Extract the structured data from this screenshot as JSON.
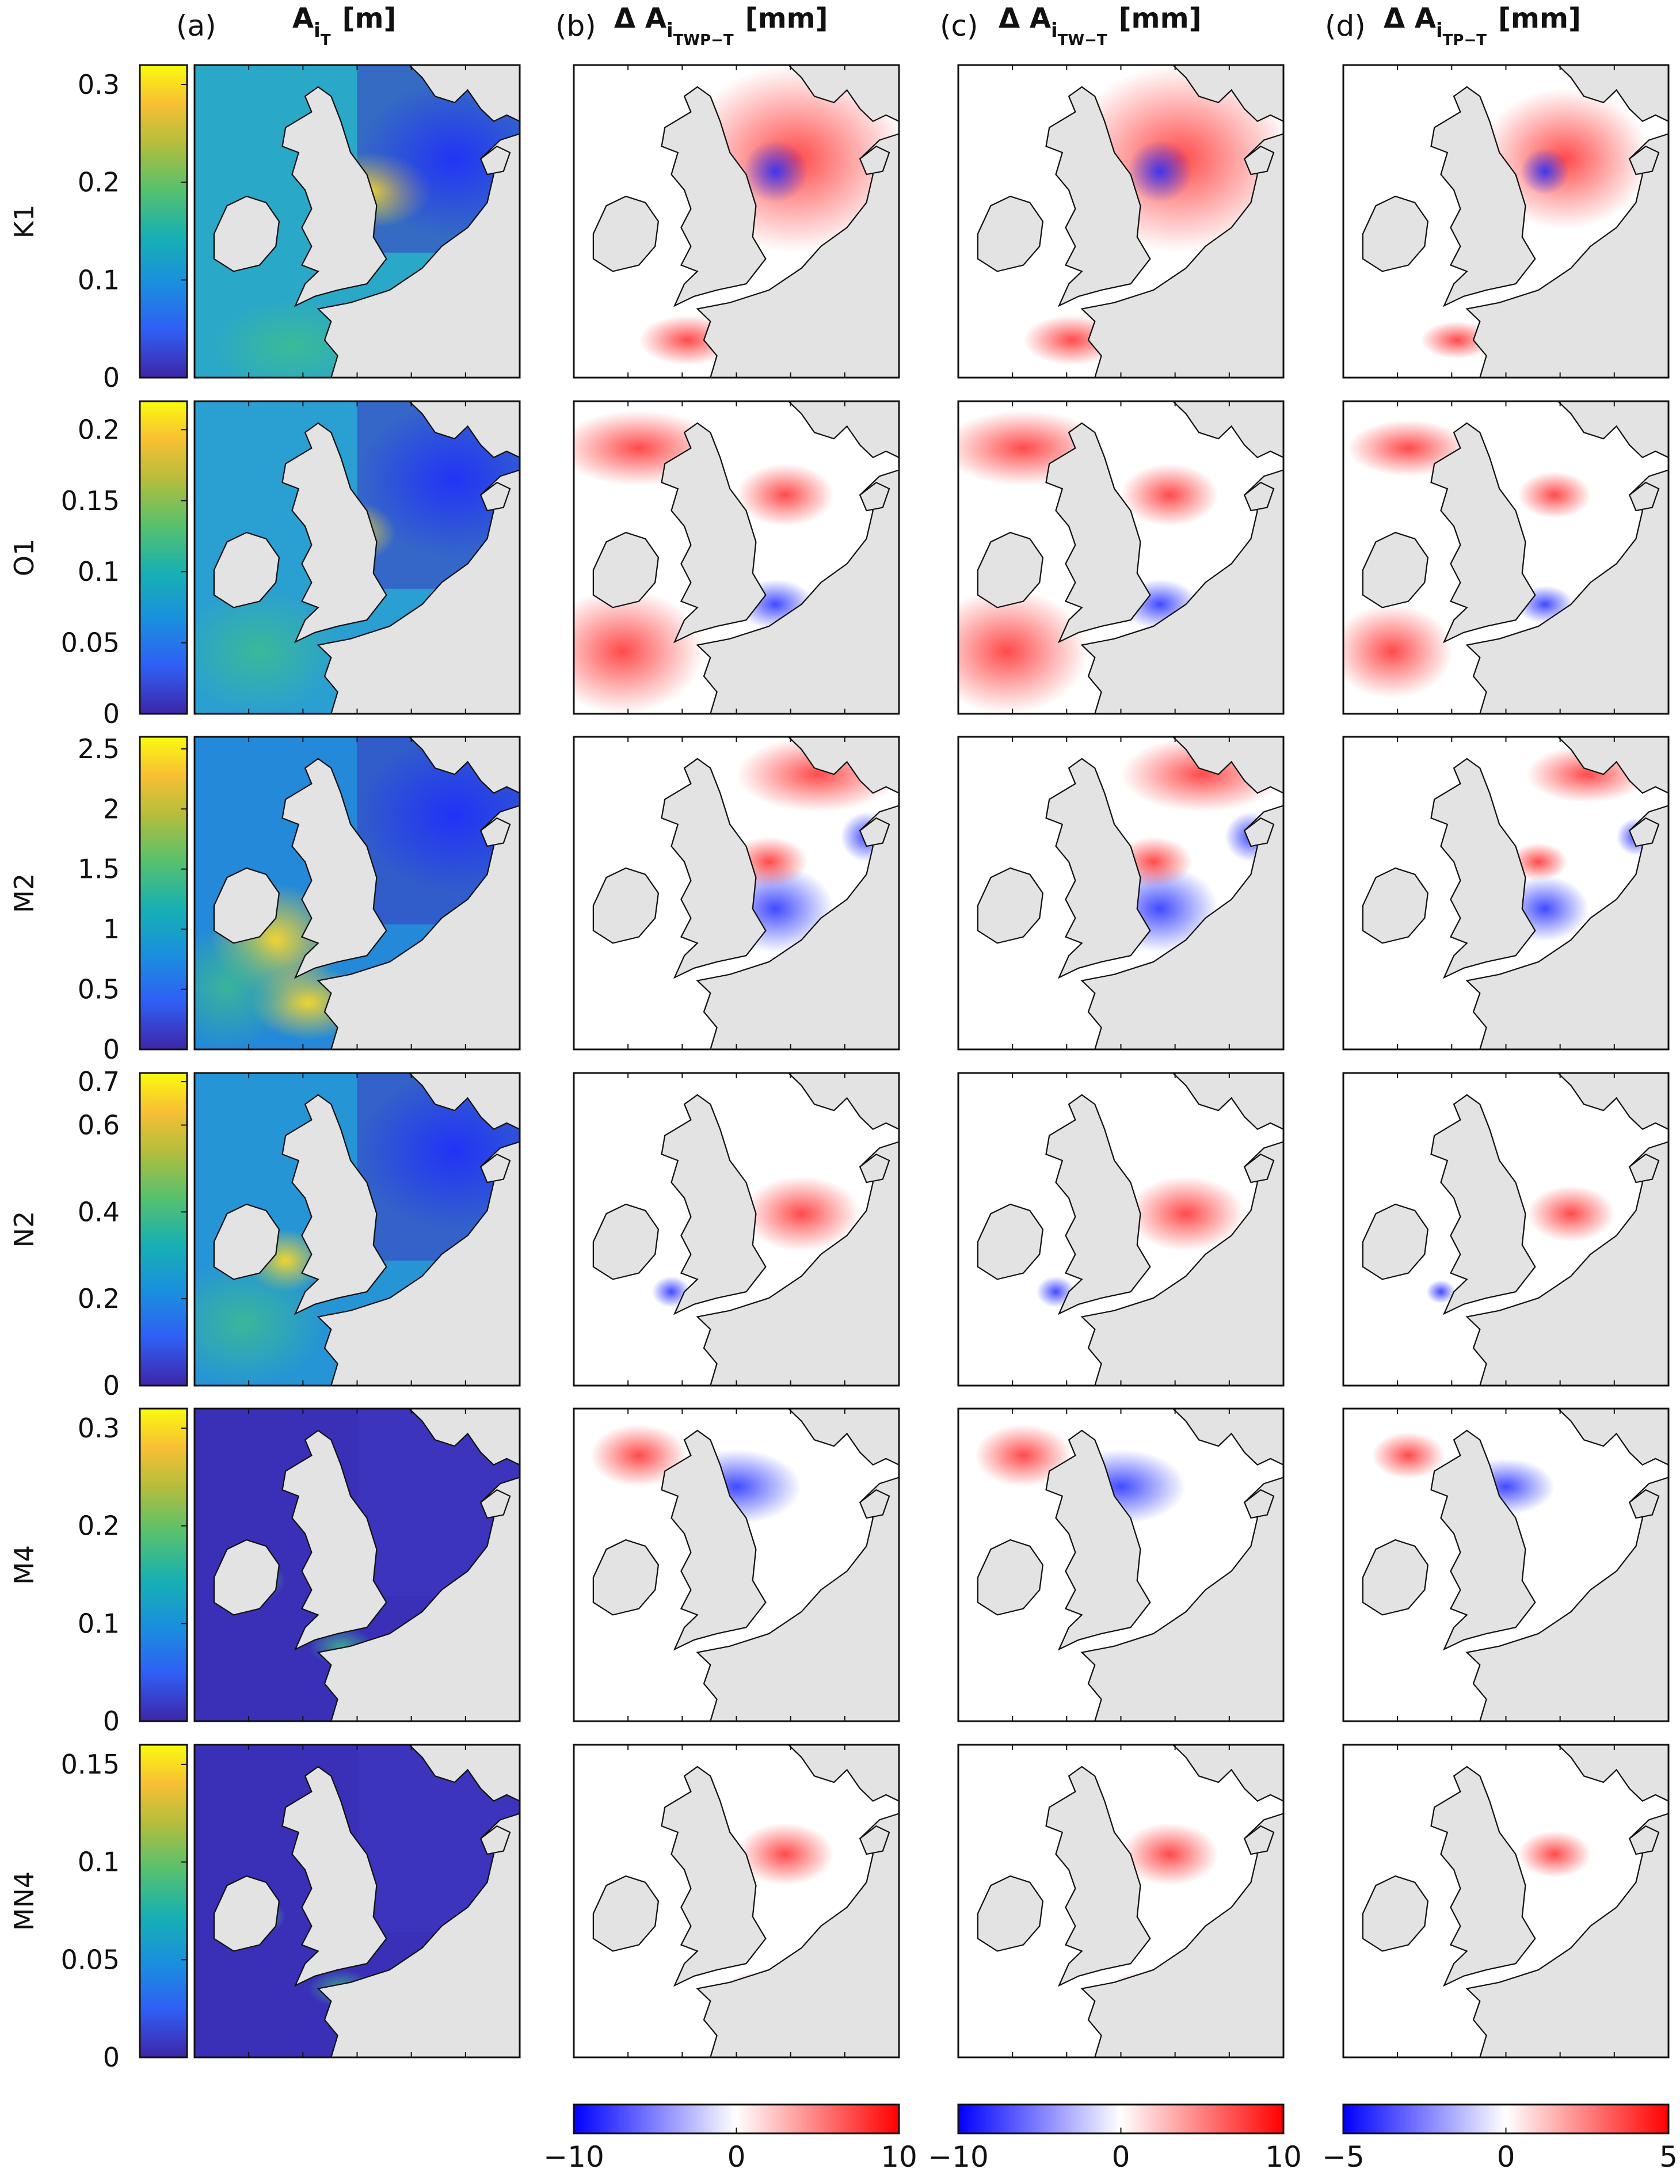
{
  "columns": [
    {
      "panel": "(a)",
      "symbol": "A",
      "sub": "i",
      "subsub": "T",
      "unit": "[m]"
    },
    {
      "panel": "(b)",
      "symbol": "Δ A",
      "sub": "i",
      "subsub": "TWP−T",
      "unit": "[mm]"
    },
    {
      "panel": "(c)",
      "symbol": "Δ A",
      "sub": "i",
      "subsub": "TW−T",
      "unit": "[mm]"
    },
    {
      "panel": "(d)",
      "symbol": "Δ A",
      "sub": "i",
      "subsub": "TP−T",
      "unit": "[mm]"
    }
  ],
  "rows": [
    {
      "label": "K1",
      "ticks": [
        "0.3",
        "0.2",
        "0.1",
        "0"
      ]
    },
    {
      "label": "O1",
      "ticks": [
        "0.2",
        "0.15",
        "0.1",
        "0.05",
        "0"
      ]
    },
    {
      "label": "M2",
      "ticks": [
        "2.5",
        "2",
        "1.5",
        "1",
        "0.5",
        "0"
      ]
    },
    {
      "label": "N2",
      "ticks": [
        "0.7",
        "0.6",
        "0.4",
        "0.2",
        "0"
      ]
    },
    {
      "label": "M4",
      "ticks": [
        "0.3",
        "0.2",
        "0.1",
        "0"
      ]
    },
    {
      "label": "MN4",
      "ticks": [
        "0.15",
        "0.1",
        "0.05",
        "0"
      ]
    }
  ],
  "bottom_colorbars": [
    {
      "labels": [
        "−10",
        "0",
        "10"
      ]
    },
    {
      "labels": [
        "−10",
        "0",
        "10"
      ]
    },
    {
      "labels": [
        "−5",
        "0",
        "5"
      ]
    }
  ],
  "colors": {
    "land": "#e3e3e3",
    "coast": "#111111",
    "parula": [
      "#3e26a8",
      "#2f5ef4",
      "#1a8fde",
      "#17b0b2",
      "#55c16e",
      "#b5bd3c",
      "#f9c033",
      "#f9fb0e"
    ],
    "diverging": [
      "#0000ff",
      "#ffffff",
      "#ff0000"
    ]
  },
  "chart_data": [
    {
      "type": "heatmap",
      "title": "A_iT [m]",
      "panels": [
        "K1",
        "O1",
        "M2",
        "N2",
        "M4",
        "MN4"
      ],
      "colorbar_ranges": {
        "K1": [
          0,
          0.32
        ],
        "O1": [
          0,
          0.22
        ],
        "M2": [
          0,
          2.6
        ],
        "N2": [
          0,
          0.72
        ],
        "M4": [
          0,
          0.32
        ],
        "MN4": [
          0,
          0.16
        ]
      }
    },
    {
      "type": "heatmap",
      "title": "Δ A_iTWP−T [mm]",
      "panels": [
        "K1",
        "O1",
        "M2",
        "N2",
        "M4",
        "MN4"
      ],
      "clim": [
        -10,
        10
      ]
    },
    {
      "type": "heatmap",
      "title": "Δ A_iTW−T [mm]",
      "panels": [
        "K1",
        "O1",
        "M2",
        "N2",
        "M4",
        "MN4"
      ],
      "clim": [
        -10,
        10
      ]
    },
    {
      "type": "heatmap",
      "title": "Δ A_iTP−T [mm]",
      "panels": [
        "K1",
        "O1",
        "M2",
        "N2",
        "M4",
        "MN4"
      ],
      "clim": [
        -5,
        5
      ]
    }
  ]
}
